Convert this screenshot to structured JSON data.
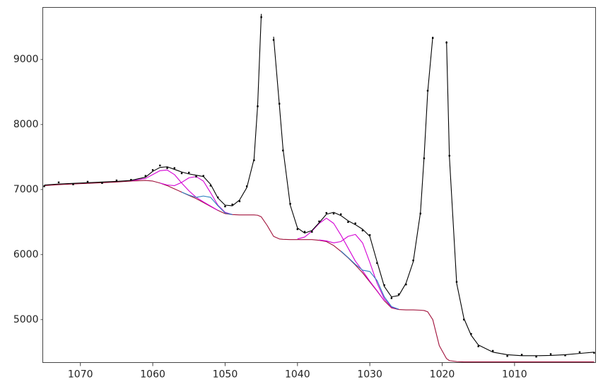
{
  "chart_data": {
    "type": "line",
    "xlim": [
      1075.2,
      998.8
    ],
    "ylim": [
      4340,
      9800
    ],
    "xticks": [
      1070,
      1060,
      1050,
      1040,
      1030,
      1020,
      1010
    ],
    "yticks": [
      5000,
      6000,
      7000,
      8000,
      9000
    ],
    "x": [
      1075,
      1073,
      1071,
      1069,
      1067,
      1065,
      1063,
      1061,
      1060,
      1059,
      1058,
      1057,
      1056,
      1055,
      1054,
      1053,
      1052,
      1051,
      1050,
      1049,
      1048,
      1047,
      1046,
      1045.5,
      1045,
      1044.2,
      1043.3,
      1042.5,
      1042,
      1041,
      1040,
      1039,
      1038,
      1037,
      1036,
      1035,
      1034,
      1033,
      1032,
      1031,
      1030,
      1029,
      1028,
      1027,
      1026,
      1025,
      1024,
      1023,
      1022.5,
      1022,
      1021.3,
      1020.4,
      1019.4,
      1019,
      1018,
      1017,
      1016,
      1015,
      1013,
      1011,
      1009,
      1007,
      1005,
      1003,
      1001,
      999
    ],
    "series": [
      {
        "mode": "markers",
        "color": "#000000",
        "values": [
          7050,
          7110,
          7080,
          7120,
          7100,
          7140,
          7150,
          7210,
          7300,
          7370,
          7330,
          7330,
          7250,
          7260,
          7200,
          7210,
          7060,
          6880,
          6740,
          6770,
          6820,
          7050,
          7450,
          8280,
          9650,
          null,
          9300,
          8320,
          7600,
          6780,
          6390,
          6350,
          6350,
          6510,
          6640,
          6630,
          6620,
          6500,
          6480,
          6370,
          6300,
          5870,
          5530,
          5330,
          5390,
          5540,
          5910,
          6630,
          7480,
          8520,
          9330,
          null,
          9260,
          7520,
          5580,
          5000,
          4780,
          4590,
          4520,
          4440,
          4460,
          4430,
          4470,
          4450,
          4500,
          4490
        ]
      },
      {
        "mode": "lines",
        "color": "#000000",
        "values": [
          7070,
          7085,
          7095,
          7105,
          7115,
          7125,
          7140,
          7190,
          7280,
          7340,
          7350,
          7310,
          7270,
          7240,
          7220,
          7200,
          7080,
          6870,
          6760,
          6750,
          6840,
          7030,
          7470,
          8300,
          9700,
          null,
          9350,
          8300,
          7630,
          6760,
          6410,
          6330,
          6370,
          6490,
          6620,
          6650,
          6600,
          6520,
          6460,
          6390,
          6280,
          5890,
          5510,
          5350,
          5370,
          5560,
          5890,
          6650,
          7500,
          8500,
          9350,
          null,
          9280,
          7500,
          5560,
          5020,
          4760,
          4610,
          4500,
          4460,
          4445,
          4445,
          4450,
          4460,
          4480,
          4500
        ]
      },
      {
        "mode": "lines",
        "color": "#a0103a",
        "values": [
          7060,
          7075,
          7085,
          7095,
          7105,
          7115,
          7130,
          7140,
          7130,
          7100,
          7060,
          7010,
          6960,
          6910,
          6860,
          6800,
          6740,
          6680,
          6630,
          6615,
          6610,
          6610,
          6610,
          6605,
          6580,
          6450,
          6280,
          6240,
          6235,
          6230,
          6230,
          6230,
          6230,
          6220,
          6200,
          6140,
          6050,
          5950,
          5840,
          5720,
          5580,
          5440,
          5290,
          5180,
          5155,
          5150,
          5150,
          5145,
          5140,
          5120,
          5000,
          4600,
          4400,
          4370,
          4355,
          4350,
          4350,
          4350,
          4350,
          4350,
          4350,
          4350,
          4350,
          4350,
          4350,
          4350
        ]
      },
      {
        "mode": "lines",
        "color": "#d400d4",
        "values": [
          null,
          null,
          null,
          null,
          null,
          null,
          7135,
          7170,
          7230,
          7290,
          7300,
          7230,
          7100,
          6980,
          6880,
          6810,
          6745,
          6680,
          null,
          null,
          null,
          null,
          null,
          null,
          null,
          null,
          null,
          null,
          null,
          null,
          6240,
          6270,
          6360,
          6480,
          6560,
          6480,
          6300,
          6100,
          5900,
          5750,
          5590,
          5445,
          5290,
          null,
          null,
          null,
          null,
          null,
          null,
          null,
          null,
          null,
          null,
          null,
          null,
          null,
          null,
          null,
          null,
          null,
          null,
          null,
          null,
          null,
          null,
          null
        ]
      },
      {
        "mode": "lines",
        "color": "#d400d4",
        "values": [
          null,
          null,
          null,
          null,
          null,
          null,
          null,
          null,
          null,
          7100,
          7070,
          7060,
          7110,
          7180,
          7200,
          7130,
          6950,
          6760,
          6650,
          6615,
          null,
          null,
          null,
          null,
          null,
          null,
          null,
          null,
          null,
          null,
          null,
          null,
          null,
          6225,
          6210,
          6180,
          6200,
          6280,
          6310,
          6180,
          5880,
          5560,
          5320,
          5190,
          5160,
          null,
          null,
          null,
          null,
          null,
          null,
          null,
          null,
          null,
          null,
          null,
          null,
          null,
          null,
          null,
          null,
          null,
          null,
          null,
          null,
          null
        ]
      },
      {
        "mode": "lines",
        "color": "#2a7fc0",
        "values": [
          null,
          null,
          null,
          null,
          null,
          null,
          null,
          null,
          null,
          null,
          null,
          null,
          6960,
          6915,
          6880,
          6900,
          6880,
          6750,
          6640,
          6615,
          null,
          null,
          null,
          null,
          null,
          null,
          null,
          null,
          null,
          null,
          null,
          null,
          null,
          null,
          null,
          null,
          6055,
          5955,
          5850,
          5760,
          5740,
          5600,
          5350,
          5200,
          5160,
          null,
          null,
          null,
          null,
          null,
          null,
          null,
          null,
          null,
          null,
          null,
          null,
          null,
          null,
          null,
          null,
          null,
          null,
          null,
          null,
          null
        ]
      }
    ]
  }
}
